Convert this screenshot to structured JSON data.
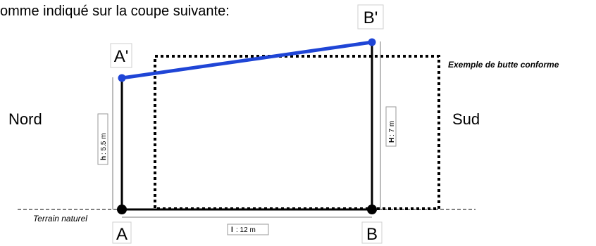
{
  "intro_text": "omme indiqué sur la coupe suivante:",
  "labels": {
    "a_prime": "A'",
    "b_prime": "B'",
    "a": "A",
    "b": "B",
    "nord": "Nord",
    "sud": "Sud",
    "terrain": "Terrain naturel",
    "butte": "Exemple de butte conforme"
  },
  "dimensions": {
    "h_label": "h",
    "h_value": ": 5.5 m",
    "H_label": "H",
    "H_value": ": 7 m",
    "l_label": "l",
    "l_value": ": 12 m"
  },
  "colors": {
    "slope_line": "#1f45d6",
    "structure": "#000000",
    "dim_line": "#7a7a7a"
  }
}
